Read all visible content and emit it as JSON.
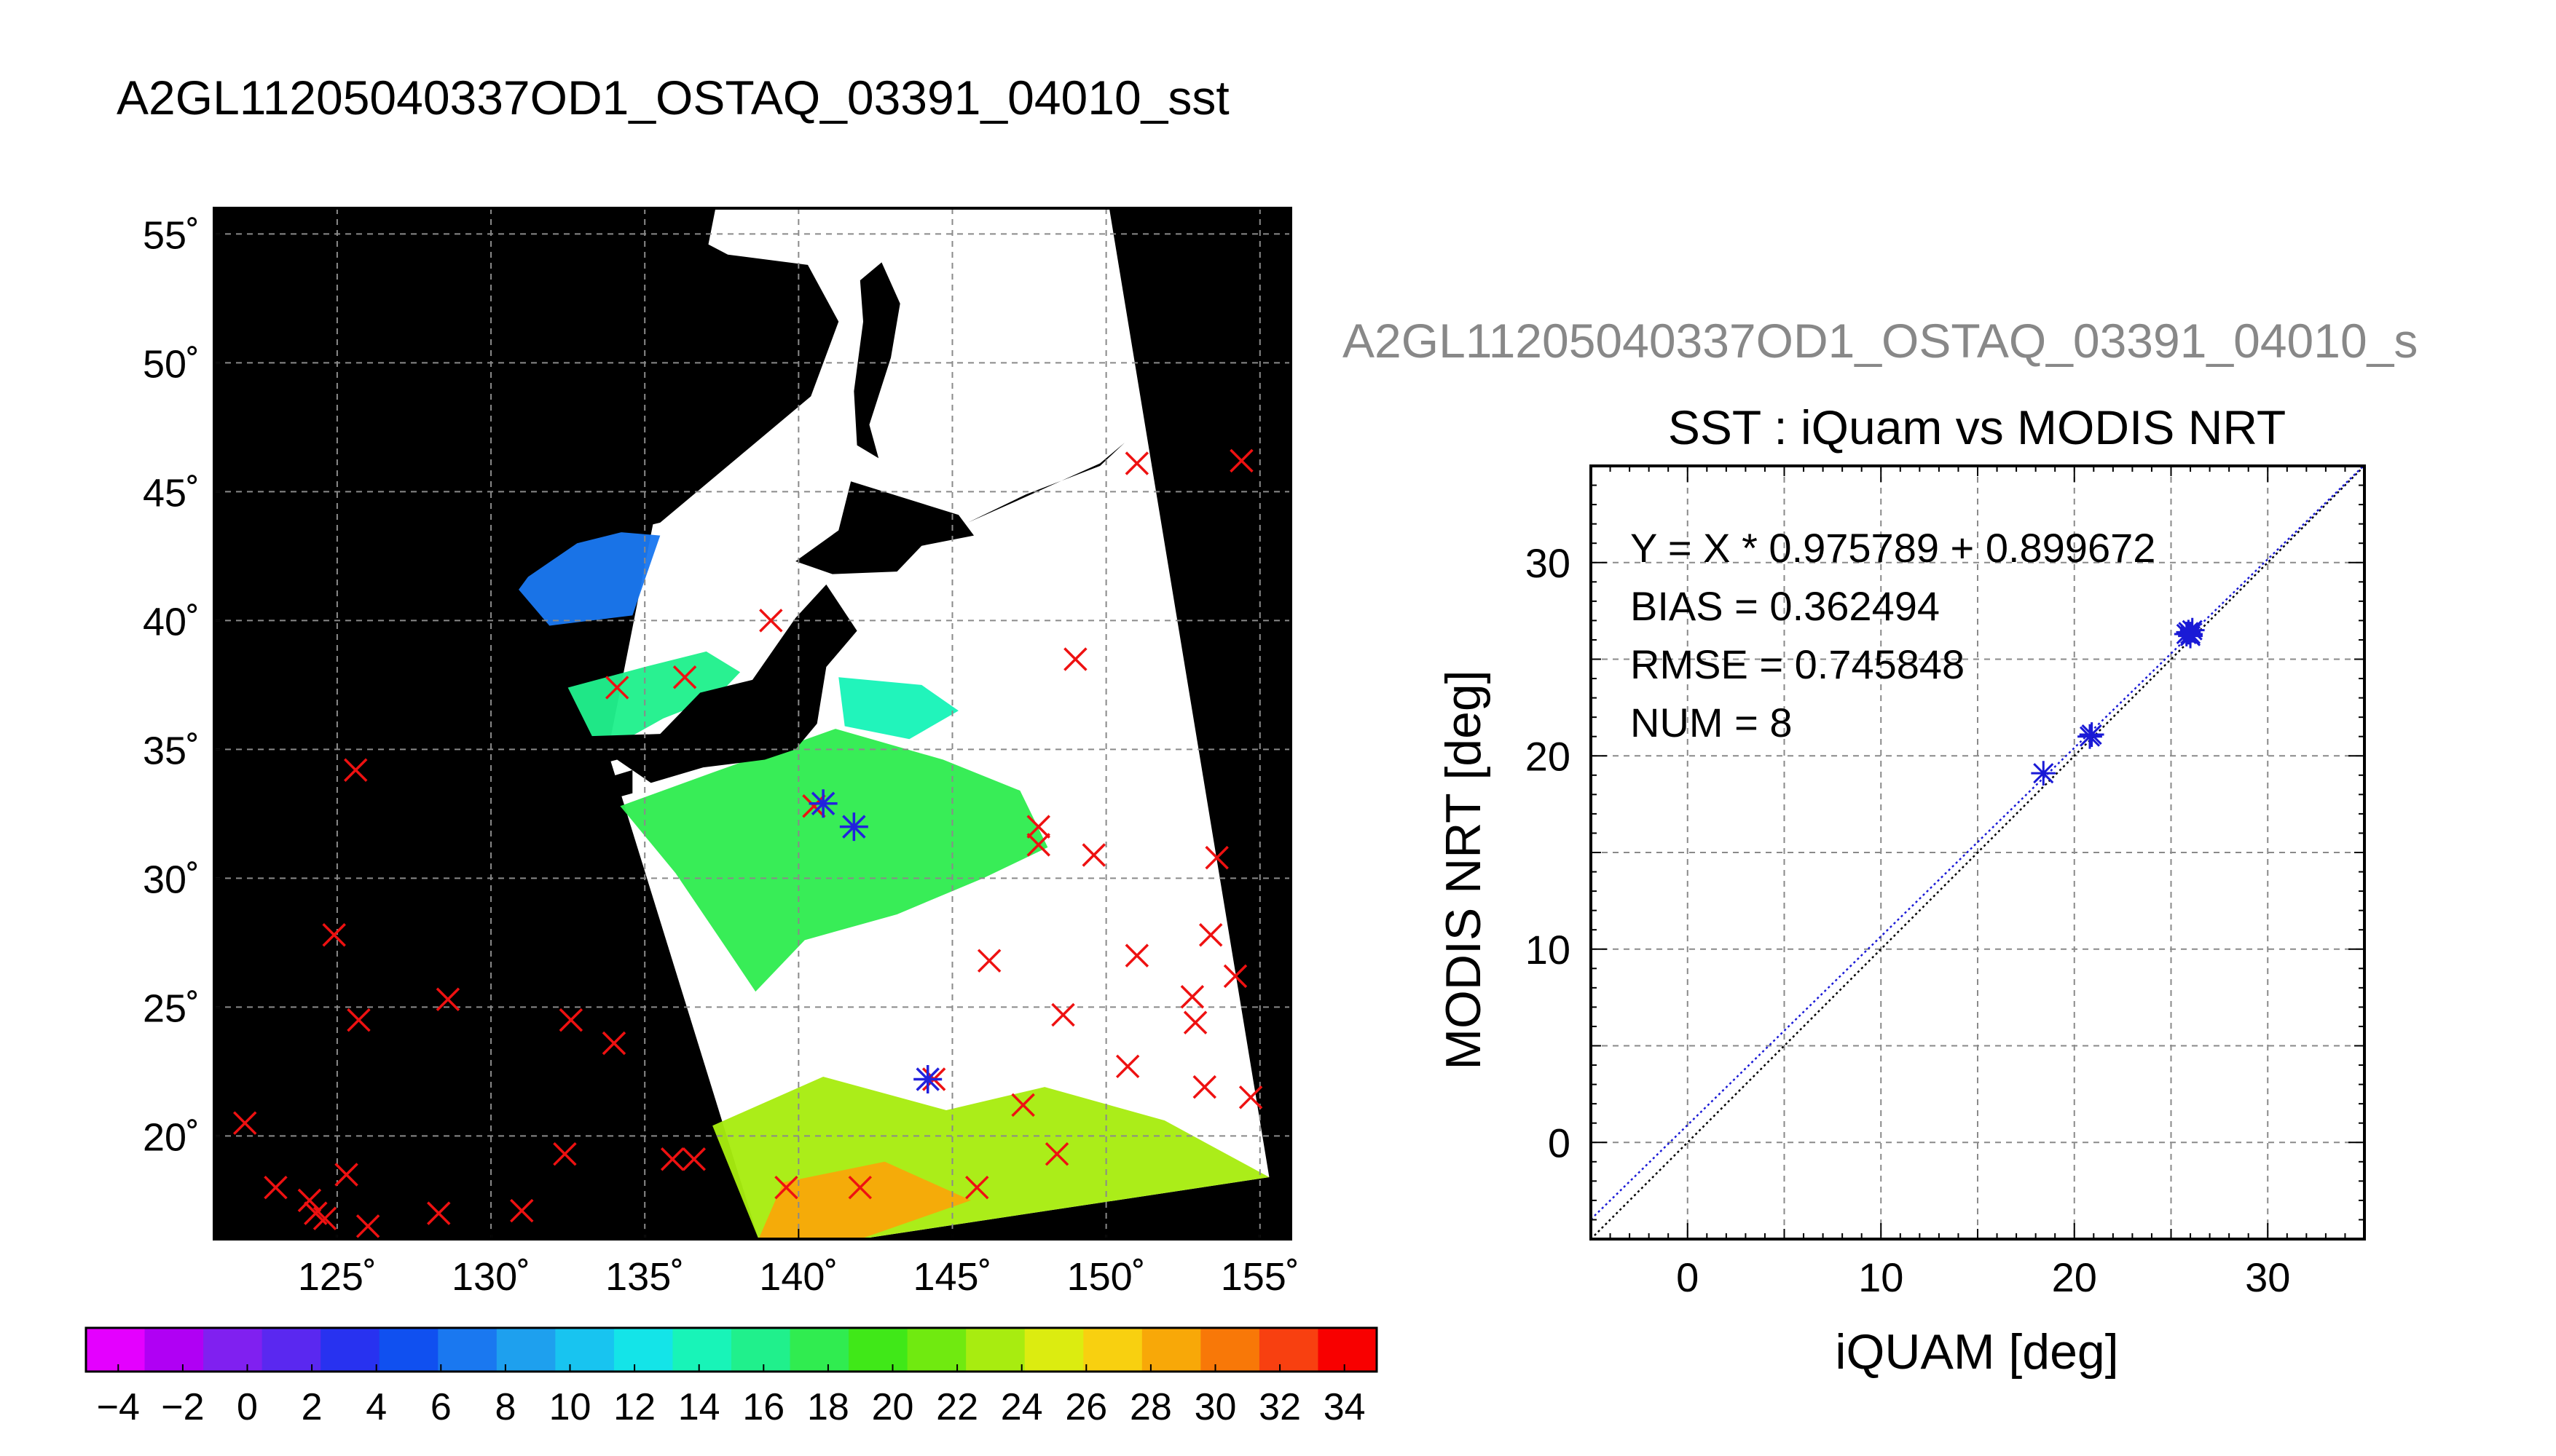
{
  "page": {
    "main_title": "A2GL11205040337OD1_OSTAQ_03391_04010_sst",
    "right_title": "A2GL11205040337OD1_OSTAQ_03391_04010_s"
  },
  "map": {
    "lat_ticks": [
      "55˚",
      "50˚",
      "45˚",
      "40˚",
      "35˚",
      "30˚",
      "25˚",
      "20˚"
    ],
    "lon_ticks": [
      "125˚",
      "130˚",
      "135˚",
      "140˚",
      "145˚",
      "150˚",
      "155˚"
    ],
    "colorbar_labels": [
      "−4",
      "−2",
      "0",
      "2",
      "4",
      "6",
      "8",
      "10",
      "12",
      "14",
      "16",
      "18",
      "20",
      "22",
      "24",
      "26",
      "28",
      "30",
      "32",
      "34"
    ],
    "colorbar_range": [
      -5,
      35
    ],
    "colorbar_colors": [
      "#e400ff",
      "#b000f4",
      "#8020f0",
      "#5a28f0",
      "#2832f0",
      "#1050f0",
      "#1a78f0",
      "#1ea0ee",
      "#18c4f0",
      "#14e4e8",
      "#18f4b8",
      "#20f08c",
      "#30ec50",
      "#40e818",
      "#70ea10",
      "#a8ec10",
      "#dcec10",
      "#f8d010",
      "#f8a808",
      "#f87808",
      "#f84010",
      "#f80000"
    ],
    "land_color": "#000000",
    "cloud_color": "#ffffff",
    "match_marker_color": "#ee1111",
    "collocation_marker_color": "#2222dd"
  },
  "scatter": {
    "title": "SST : iQuam vs MODIS NRT",
    "xlabel": "iQUAM [deg]",
    "ylabel": "MODIS NRT [deg]",
    "x_ticks": [
      "0",
      "10",
      "20",
      "30"
    ],
    "y_ticks": [
      "0",
      "10",
      "20",
      "30"
    ],
    "stat_fit": "Y = X * 0.975789 + 0.899672",
    "stat_bias": "BIAS = 0.362494",
    "stat_rmse": "RMSE = 0.745848",
    "stat_num": "NUM = 8"
  },
  "chart_data": {
    "type": "scatter",
    "title": "SST : iQuam vs MODIS NRT",
    "xlabel": "iQUAM [deg]",
    "ylabel": "MODIS NRT [deg]",
    "xlim": [
      -5,
      35
    ],
    "ylim": [
      -5,
      35
    ],
    "grid": true,
    "points": [
      {
        "x": 18.4,
        "y": 19.1
      },
      {
        "x": 20.8,
        "y": 21.0
      },
      {
        "x": 20.9,
        "y": 21.1
      },
      {
        "x": 25.8,
        "y": 26.3
      },
      {
        "x": 25.9,
        "y": 26.4
      },
      {
        "x": 26.0,
        "y": 26.3
      },
      {
        "x": 26.1,
        "y": 26.5
      },
      {
        "x": 26.0,
        "y": 26.2
      }
    ],
    "reference_line": {
      "slope": 1,
      "intercept": 0
    },
    "fit_line": {
      "slope": 0.975789,
      "intercept": 0.899672
    },
    "bias": 0.362494,
    "rmse": 0.745848,
    "num": 8
  },
  "map_data": {
    "lon_range": [
      121,
      156
    ],
    "lat_range": [
      16,
      56
    ],
    "red_markers": [
      [
        122.0,
        20.5
      ],
      [
        123.0,
        18.0
      ],
      [
        124.3,
        17.0
      ],
      [
        124.6,
        16.8
      ],
      [
        124.1,
        17.5
      ],
      [
        126.0,
        16.5
      ],
      [
        124.9,
        27.8
      ],
      [
        125.6,
        34.2
      ],
      [
        125.7,
        24.5
      ],
      [
        125.3,
        18.5
      ],
      [
        128.3,
        17.0
      ],
      [
        128.6,
        25.3
      ],
      [
        131.0,
        17.1
      ],
      [
        132.4,
        19.3
      ],
      [
        132.6,
        24.5
      ],
      [
        134.0,
        23.6
      ],
      [
        134.1,
        37.4
      ],
      [
        135.9,
        19.1
      ],
      [
        136.6,
        19.1
      ],
      [
        136.3,
        37.8
      ],
      [
        139.1,
        40.0
      ],
      [
        139.6,
        18.0
      ],
      [
        140.5,
        32.8
      ],
      [
        142.0,
        18.0
      ],
      [
        144.4,
        22.2
      ],
      [
        145.8,
        18.0
      ],
      [
        146.2,
        26.8
      ],
      [
        147.3,
        21.2
      ],
      [
        147.8,
        31.3
      ],
      [
        147.8,
        32.0
      ],
      [
        148.4,
        19.3
      ],
      [
        148.6,
        24.7
      ],
      [
        149.0,
        38.5
      ],
      [
        149.6,
        30.9
      ],
      [
        150.7,
        22.7
      ],
      [
        151.0,
        46.1
      ],
      [
        151.0,
        27.0
      ],
      [
        152.8,
        25.4
      ],
      [
        152.9,
        24.4
      ],
      [
        153.2,
        21.9
      ],
      [
        153.4,
        27.8
      ],
      [
        153.6,
        30.8
      ],
      [
        154.2,
        26.2
      ],
      [
        154.4,
        46.2
      ],
      [
        154.7,
        21.5
      ]
    ],
    "blue_markers": [
      [
        140.8,
        32.9
      ],
      [
        141.8,
        32.0
      ],
      [
        144.2,
        22.2
      ]
    ]
  }
}
